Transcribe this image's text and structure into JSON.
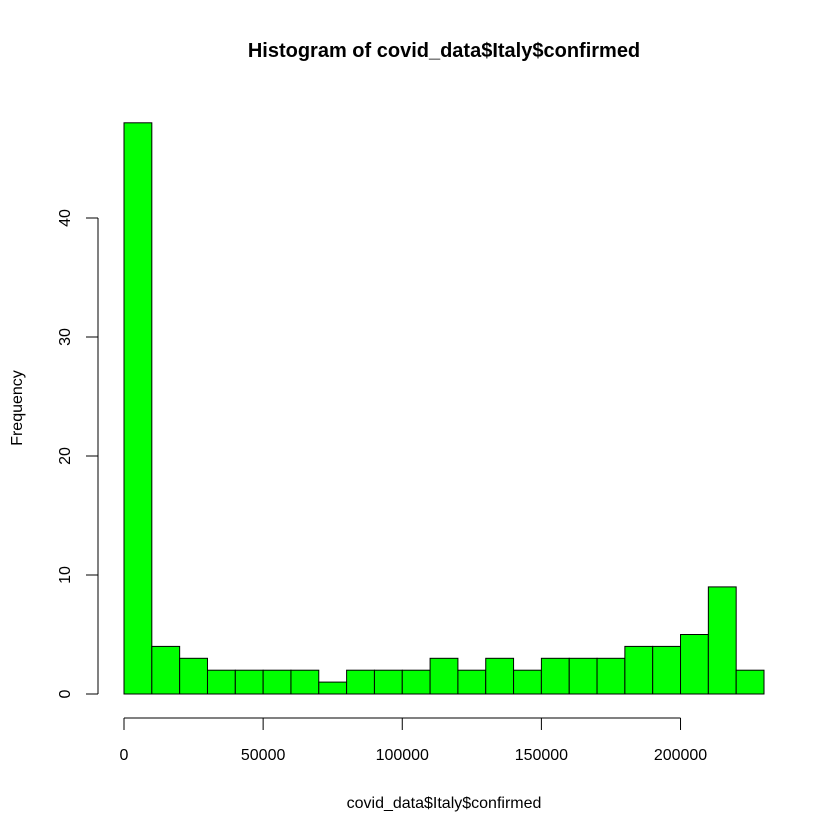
{
  "chart_data": {
    "type": "bar",
    "title": "Histogram of covid_data$Italy$confirmed",
    "xlabel": "covid_data$Italy$confirmed",
    "ylabel": "Frequency",
    "bin_width": 10000,
    "bins": [
      {
        "start": 0,
        "end": 10000,
        "count": 48
      },
      {
        "start": 10000,
        "end": 20000,
        "count": 4
      },
      {
        "start": 20000,
        "end": 30000,
        "count": 3
      },
      {
        "start": 30000,
        "end": 40000,
        "count": 2
      },
      {
        "start": 40000,
        "end": 50000,
        "count": 2
      },
      {
        "start": 50000,
        "end": 60000,
        "count": 2
      },
      {
        "start": 60000,
        "end": 70000,
        "count": 2
      },
      {
        "start": 70000,
        "end": 80000,
        "count": 1
      },
      {
        "start": 80000,
        "end": 90000,
        "count": 2
      },
      {
        "start": 90000,
        "end": 100000,
        "count": 2
      },
      {
        "start": 100000,
        "end": 110000,
        "count": 2
      },
      {
        "start": 110000,
        "end": 120000,
        "count": 3
      },
      {
        "start": 120000,
        "end": 130000,
        "count": 2
      },
      {
        "start": 130000,
        "end": 140000,
        "count": 3
      },
      {
        "start": 140000,
        "end": 150000,
        "count": 2
      },
      {
        "start": 150000,
        "end": 160000,
        "count": 3
      },
      {
        "start": 160000,
        "end": 170000,
        "count": 3
      },
      {
        "start": 170000,
        "end": 180000,
        "count": 3
      },
      {
        "start": 180000,
        "end": 190000,
        "count": 4
      },
      {
        "start": 190000,
        "end": 200000,
        "count": 4
      },
      {
        "start": 200000,
        "end": 210000,
        "count": 5
      },
      {
        "start": 210000,
        "end": 220000,
        "count": 9
      },
      {
        "start": 220000,
        "end": 230000,
        "count": 2
      }
    ],
    "xlim": [
      0,
      230000
    ],
    "ylim": [
      0,
      48
    ],
    "x_ticks": [
      0,
      50000,
      100000,
      150000,
      200000
    ],
    "x_tick_labels": [
      "0",
      "50000",
      "100000",
      "150000",
      "200000"
    ],
    "y_ticks": [
      0,
      10,
      20,
      30,
      40
    ],
    "y_tick_labels": [
      "0",
      "10",
      "20",
      "30",
      "40"
    ],
    "bar_color": "#00ff00",
    "border_color": "#000000",
    "grid": false,
    "legend": "none"
  }
}
